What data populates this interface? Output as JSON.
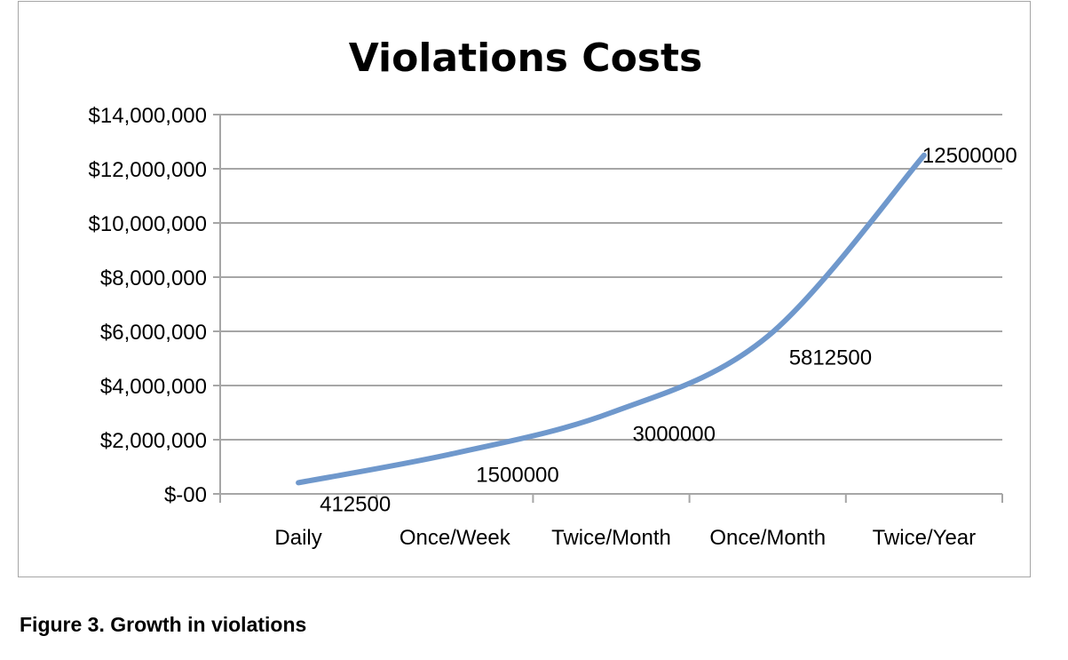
{
  "chart_data": {
    "type": "line",
    "title": "Violations Costs",
    "categories": [
      "Daily",
      "Once/Week",
      "Twice/Month",
      "Once/Month",
      "Twice/Year"
    ],
    "series": [
      {
        "values": [
          412500,
          1500000,
          3000000,
          5812500,
          12500000
        ]
      }
    ],
    "data_labels": [
      "412500",
      "1500000",
      "3000000",
      "5812500",
      "12500000"
    ],
    "ylim": [
      0,
      14000000
    ],
    "y_ticks": [
      0,
      2000000,
      4000000,
      6000000,
      8000000,
      10000000,
      12000000,
      14000000
    ],
    "y_tick_labels": [
      "$-00",
      "$2,000,000",
      "$4,000,000",
      "$6,000,000",
      "$8,000,000",
      "$10,000,000",
      "$12,000,000",
      "$14,000,000"
    ],
    "smooth": true,
    "grid": true,
    "line_color": "#6f98cc",
    "grid_color": "#a6a6a6"
  },
  "caption": "Figure 3. Growth in violations"
}
